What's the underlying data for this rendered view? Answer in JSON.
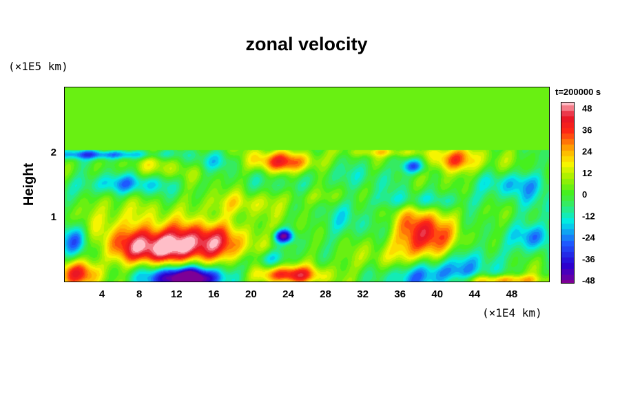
{
  "chart_data": {
    "type": "heatmap",
    "title": "zonal velocity",
    "ylabel": "Height",
    "y_unit": "(×1E5 km)",
    "x_unit": "(×1E4 km)",
    "time_label": "t=200000 s",
    "xlim": [
      0,
      52
    ],
    "ylim": [
      0,
      3
    ],
    "x_ticks": [
      "4",
      "8",
      "12",
      "16",
      "20",
      "24",
      "28",
      "32",
      "36",
      "40",
      "44",
      "48"
    ],
    "x_tick_values": [
      4,
      8,
      12,
      16,
      20,
      24,
      28,
      32,
      36,
      40,
      44,
      48
    ],
    "y_ticks": [
      "1",
      "2"
    ],
    "y_tick_values": [
      1,
      2
    ],
    "colorbar": {
      "min": -48,
      "max": 48,
      "ticks": [
        "48",
        "36",
        "24",
        "12",
        "0",
        "-12",
        "-24",
        "-36",
        "-48"
      ],
      "tick_values": [
        48,
        36,
        24,
        12,
        0,
        -12,
        -24,
        -36,
        -48
      ]
    },
    "field_blobs": [
      {
        "x": 12,
        "y": 0.55,
        "sx": 4.0,
        "sy": 0.22,
        "value": 46
      },
      {
        "x": 8,
        "y": 0.45,
        "sx": 3.0,
        "sy": 0.35,
        "value": 18
      },
      {
        "x": 16,
        "y": 0.6,
        "sx": 2.0,
        "sy": 0.3,
        "value": 14
      },
      {
        "x": 38.5,
        "y": 0.68,
        "sx": 2.2,
        "sy": 0.32,
        "value": 40
      },
      {
        "x": 13.5,
        "y": 0.05,
        "sx": 2.4,
        "sy": 0.12,
        "value": -52
      },
      {
        "x": 11,
        "y": 0.12,
        "sx": 4.0,
        "sy": 0.18,
        "value": -26
      },
      {
        "x": 39,
        "y": 0.12,
        "sx": 3.0,
        "sy": 0.18,
        "value": -34
      },
      {
        "x": 1.5,
        "y": 0.12,
        "sx": 1.8,
        "sy": 0.15,
        "value": 32
      },
      {
        "x": 24,
        "y": 0.1,
        "sx": 2.5,
        "sy": 0.1,
        "value": 38
      },
      {
        "x": 22,
        "y": 0.35,
        "sx": 1.2,
        "sy": 0.1,
        "value": -20
      },
      {
        "x": 23.5,
        "y": 0.7,
        "sx": 0.7,
        "sy": 0.07,
        "value": -42
      },
      {
        "x": 23.5,
        "y": 1.85,
        "sx": 2.8,
        "sy": 0.12,
        "value": 34
      },
      {
        "x": 41.5,
        "y": 1.88,
        "sx": 1.6,
        "sy": 0.12,
        "value": 30
      },
      {
        "x": 37.5,
        "y": 1.78,
        "sx": 1.0,
        "sy": 0.08,
        "value": -30
      },
      {
        "x": 6,
        "y": 1.5,
        "sx": 3.5,
        "sy": 0.12,
        "value": -22
      },
      {
        "x": 4,
        "y": 1.96,
        "sx": 4.5,
        "sy": 0.05,
        "value": -26
      },
      {
        "x": 48,
        "y": 1.52,
        "sx": 4.0,
        "sy": 0.15,
        "value": -18
      },
      {
        "x": 38,
        "y": 1.25,
        "sx": 5.0,
        "sy": 0.1,
        "value": -14
      },
      {
        "x": 1.2,
        "y": 0.65,
        "sx": 1.2,
        "sy": 0.2,
        "value": -28
      },
      {
        "x": 50.5,
        "y": 0.7,
        "sx": 1.5,
        "sy": 0.15,
        "value": -22
      },
      {
        "x": 47,
        "y": 0.02,
        "sx": 3.0,
        "sy": 0.06,
        "value": 28
      },
      {
        "x": 4,
        "y": 1.0,
        "sx": 3.0,
        "sy": 0.2,
        "value": 10
      },
      {
        "x": 28,
        "y": 1.6,
        "sx": 6.0,
        "sy": 0.2,
        "value": -8
      },
      {
        "x": 18,
        "y": 1.2,
        "sx": 3.0,
        "sy": 0.12,
        "value": 12
      },
      {
        "x": 30,
        "y": 0.9,
        "sx": 2.5,
        "sy": 0.2,
        "value": -10
      },
      {
        "x": 44,
        "y": 1.7,
        "sx": 2.5,
        "sy": 0.2,
        "value": 10
      },
      {
        "x": 33,
        "y": 0.3,
        "sx": 3.0,
        "sy": 0.15,
        "value": 8
      },
      {
        "x": 45,
        "y": 0.35,
        "sx": 2.5,
        "sy": 0.2,
        "value": -12
      },
      {
        "x": 35,
        "y": 2.0,
        "sx": 3.0,
        "sy": 0.05,
        "value": 14
      },
      {
        "x": 10,
        "y": 1.75,
        "sx": 3.0,
        "sy": 0.12,
        "value": 10
      },
      {
        "x": 16,
        "y": 1.85,
        "sx": 2.5,
        "sy": 0.1,
        "value": -12
      },
      {
        "x": 27,
        "y": 1.3,
        "sx": 3.0,
        "sy": 0.1,
        "value": 10
      },
      {
        "x": 51,
        "y": 1.1,
        "sx": 2.0,
        "sy": 0.25,
        "value": -8
      },
      {
        "x": 20,
        "y": 0.8,
        "sx": 2.0,
        "sy": 0.2,
        "value": 6
      }
    ]
  }
}
